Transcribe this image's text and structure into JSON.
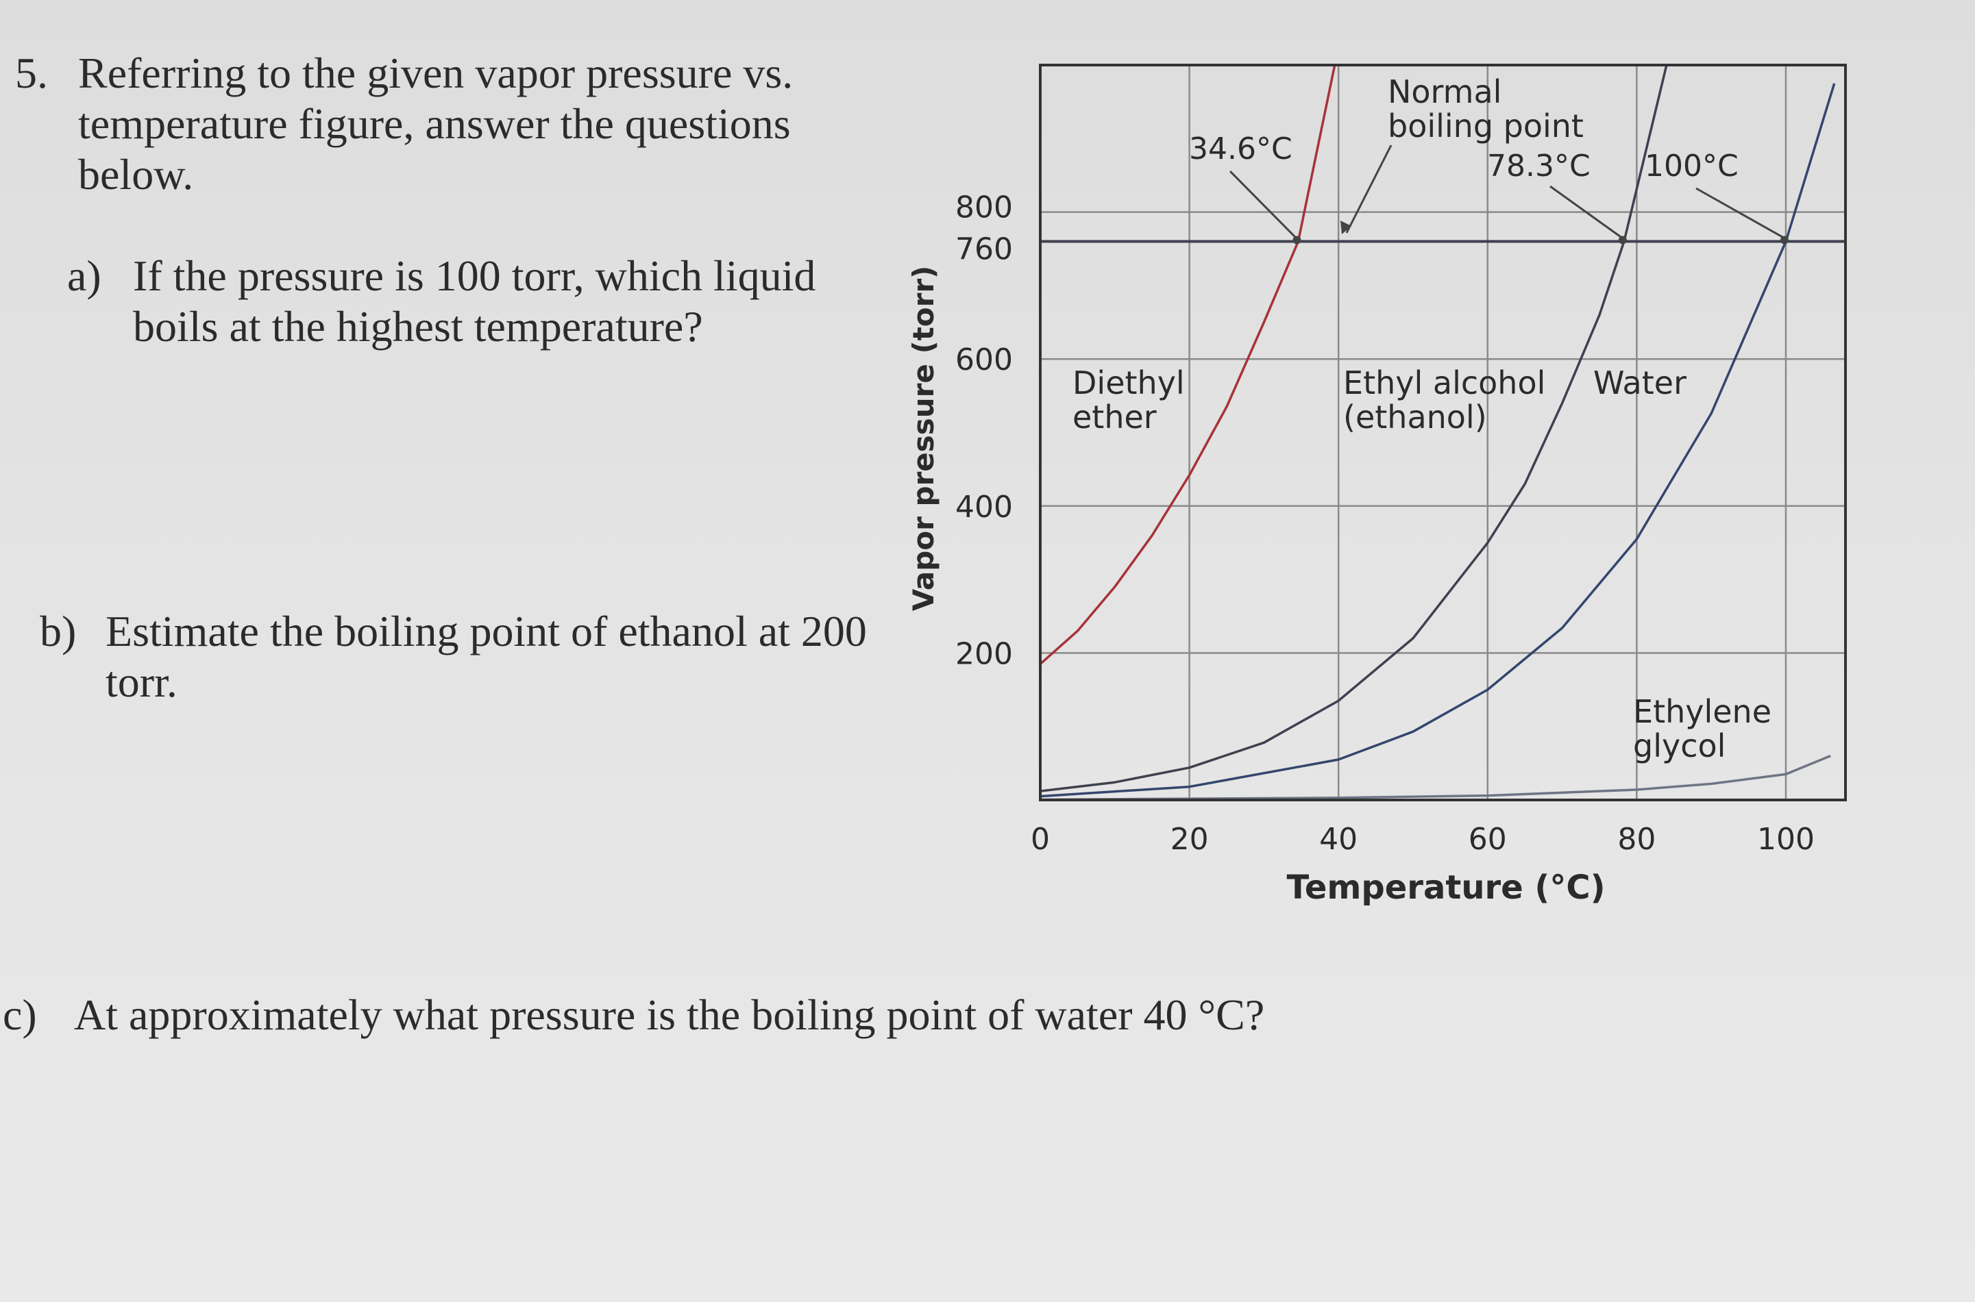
{
  "questions": {
    "main": {
      "number": "5.",
      "text": "Referring to the given vapor pressure vs. temperature figure, answer the questions below."
    },
    "a": {
      "label": "a)",
      "text": "If the pressure is 100 torr, which liquid boils at the highest temperature?"
    },
    "b": {
      "label": "b)",
      "text": "Estimate the boiling point of ethanol at 200 torr."
    },
    "c": {
      "label": "c)",
      "text": "At approximately what pressure is the boiling point of water 40 °C?"
    }
  },
  "chart_data": {
    "type": "line",
    "xlabel": "Temperature (°C)",
    "ylabel": "Vapor pressure (torr)",
    "xlim": [
      0,
      108
    ],
    "ylim": [
      0,
      1000
    ],
    "x_ticks": [
      0,
      20,
      40,
      60,
      80,
      100
    ],
    "y_ticks": [
      200,
      400,
      600,
      760,
      800
    ],
    "grid": true,
    "reference_line": {
      "y": 760
    },
    "annotation_title": "Normal boiling point",
    "series": [
      {
        "name": "Diethyl ether",
        "color": "#a8323a",
        "points": [
          [
            0,
            185
          ],
          [
            5,
            230
          ],
          [
            10,
            290
          ],
          [
            15,
            360
          ],
          [
            20,
            442
          ],
          [
            25,
            535
          ],
          [
            30,
            650
          ],
          [
            34.6,
            760
          ],
          [
            39.5,
            1000
          ]
        ]
      },
      {
        "name": "Ethyl alcohol (ethanol)",
        "color": "#3f4150",
        "points": [
          [
            0,
            12
          ],
          [
            10,
            24
          ],
          [
            20,
            44
          ],
          [
            30,
            78
          ],
          [
            40,
            135
          ],
          [
            50,
            220
          ],
          [
            60,
            350
          ],
          [
            65,
            430
          ],
          [
            70,
            540
          ],
          [
            75,
            660
          ],
          [
            78.3,
            760
          ],
          [
            84,
            1000
          ]
        ]
      },
      {
        "name": "Water",
        "color": "#34466e",
        "points": [
          [
            0,
            5
          ],
          [
            20,
            18
          ],
          [
            40,
            55
          ],
          [
            50,
            93
          ],
          [
            60,
            150
          ],
          [
            70,
            234
          ],
          [
            80,
            355
          ],
          [
            90,
            526
          ],
          [
            100,
            760
          ],
          [
            106.5,
            975
          ]
        ]
      },
      {
        "name": "Ethylene glycol",
        "color": "#6e7584",
        "points": [
          [
            0,
            0.5
          ],
          [
            40,
            3
          ],
          [
            60,
            6
          ],
          [
            80,
            14
          ],
          [
            90,
            22
          ],
          [
            100,
            35
          ],
          [
            106,
            60
          ]
        ]
      }
    ],
    "boiling_labels": [
      {
        "text": "34.6°C",
        "series": "Diethyl ether",
        "x": 34.6
      },
      {
        "text": "78.3°C",
        "series": "Ethyl alcohol (ethanol)",
        "x": 78.3
      },
      {
        "text": "100°C",
        "series": "Water",
        "x": 100
      }
    ],
    "series_labels": [
      {
        "lines": [
          "Diethyl",
          "ether"
        ]
      },
      {
        "lines": [
          "Ethyl alcohol",
          "(ethanol)"
        ]
      },
      {
        "lines": [
          "Water"
        ]
      },
      {
        "lines": [
          "Ethylene",
          "glycol"
        ]
      }
    ]
  }
}
